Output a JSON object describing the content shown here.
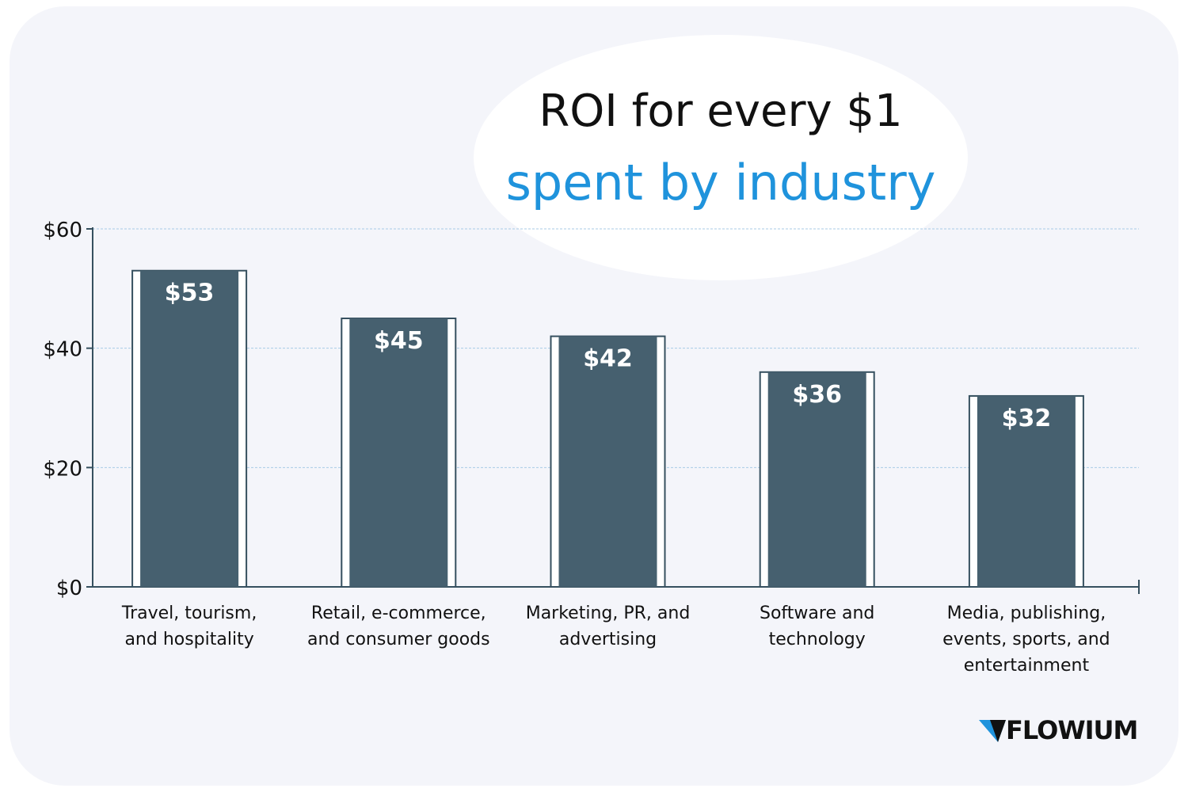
{
  "title": {
    "line1": "ROI for every $1",
    "line2": "spent by industry"
  },
  "colors": {
    "card_background": "#f4f5fa",
    "bar_fill": "#46606f",
    "bar_border": "#36505f",
    "title_accent": "#1f93dc",
    "gridline": "#a9cbe6",
    "logo_accent": "#1f93dc"
  },
  "brand": {
    "logo_text": "FLOWIUM",
    "logo_icon": "flowium-triangle-icon"
  },
  "chart_data": {
    "type": "bar",
    "categories": [
      [
        "Travel, tourism,",
        "and hospitality"
      ],
      [
        "Retail, e-commerce,",
        "and consumer goods"
      ],
      [
        "Marketing, PR, and",
        "advertising"
      ],
      [
        "Software and",
        "technology"
      ],
      [
        "Media, publishing,",
        "events, sports, and",
        "entertainment"
      ]
    ],
    "values": [
      53,
      45,
      42,
      36,
      32
    ],
    "data_labels": [
      "$53",
      "$45",
      "$42",
      "$36",
      "$32"
    ],
    "y_ticks": [
      0,
      20,
      40,
      60
    ],
    "y_tick_labels": [
      "$0",
      "$20",
      "$40",
      "$60"
    ],
    "ylim": [
      0,
      60
    ],
    "grid": true,
    "legend": "none",
    "xlabel": "",
    "ylabel": ""
  }
}
